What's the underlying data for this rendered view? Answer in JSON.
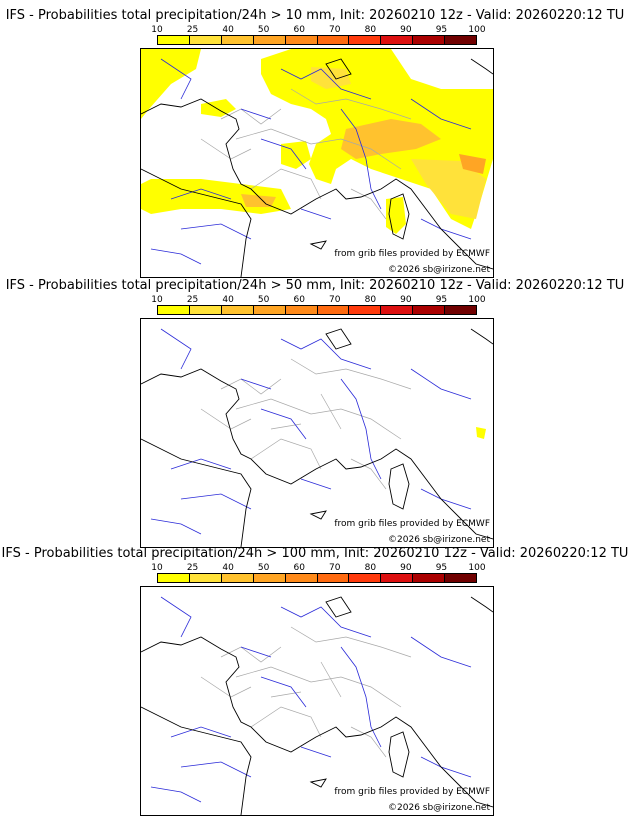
{
  "colorbar": {
    "labels": [
      "10",
      "25",
      "40",
      "50",
      "60",
      "70",
      "80",
      "90",
      "95",
      "100"
    ],
    "colors": [
      "#ffff00",
      "#ffe23a",
      "#ffc22e",
      "#ffa524",
      "#ff8a1a",
      "#ff6a10",
      "#ff3a0c",
      "#dd1010",
      "#aa0000",
      "#700000"
    ]
  },
  "panels": [
    {
      "title": "IFS - Probabilities total precipitation/24h > 10 mm, Init: 20260210 12z - Valid: 20260220:12 TU",
      "credit_source": "from grib files provided by ECMWF",
      "credit_copyright": "©2026 sb@irizone.net"
    },
    {
      "title": "IFS - Probabilities total precipitation/24h > 50 mm, Init: 20260210 12z - Valid: 20260220:12 TU",
      "credit_source": "from grib files provided by ECMWF",
      "credit_copyright": "©2026 sb@irizone.net"
    },
    {
      "title": "IFS - Probabilities total precipitation/24h > 100 mm, Init: 20260210 12z - Valid: 20260220:12 TU",
      "credit_source": "from grib files provided by ECMWF",
      "credit_copyright": "©2026 sb@irizone.net"
    }
  ],
  "colors": {
    "coast": "#000000",
    "rivers": "#2a2ad8",
    "borders": "#a8a8a8"
  }
}
